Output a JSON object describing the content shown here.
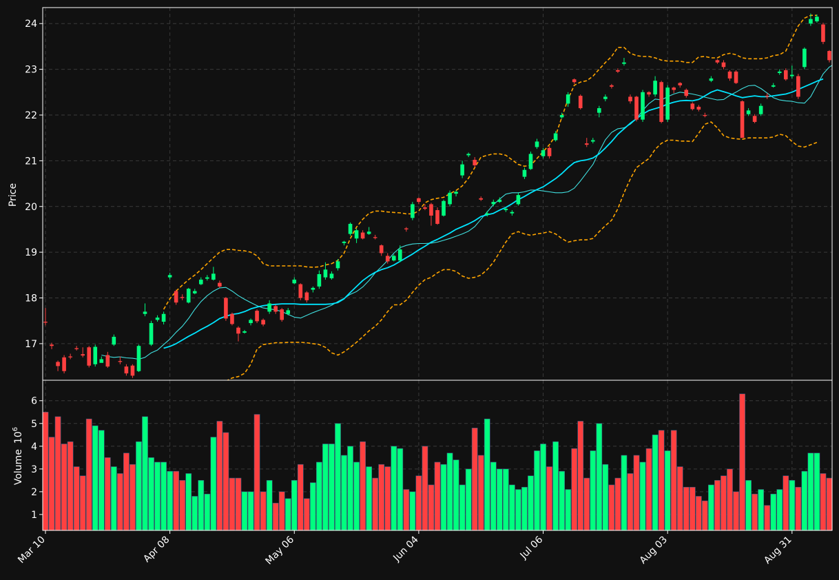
{
  "chart_data": {
    "type": "candlestick",
    "title": "",
    "price_panel": {
      "ylabel": "Price",
      "ylim": [
        16.2,
        24.35
      ],
      "yticks": [
        17,
        18,
        19,
        20,
        21,
        22,
        23,
        24
      ],
      "grid": true
    },
    "volume_panel": {
      "ylabel": "Volume",
      "ylabel_exponent": "10",
      "ylabel_exponent_power": "6",
      "ylim": [
        0.3,
        6.9
      ],
      "yticks": [
        1,
        2,
        3,
        4,
        5,
        6
      ],
      "grid": true
    },
    "x_ticks": [
      {
        "label": "Mar 10",
        "index": 0
      },
      {
        "label": "Apr 08",
        "index": 20
      },
      {
        "label": "May 06",
        "index": 40
      },
      {
        "label": "Jun 04",
        "index": 60
      },
      {
        "label": "Jul 06",
        "index": 80
      },
      {
        "label": "Aug 03",
        "index": 100
      },
      {
        "label": "Aug 31",
        "index": 120
      }
    ],
    "colors": {
      "up": "#00ff7f",
      "down": "#ff4040",
      "ma_fast": "#40e0e0",
      "ma_slow": "#00e5ff",
      "bands": "#ffa500",
      "background": "#111111",
      "grid": "#3a3a3a",
      "frame": "#ffffff"
    },
    "series_close": [
      17.46,
      16.95,
      16.51,
      16.4,
      16.7,
      16.88,
      16.74,
      16.52,
      16.93,
      16.66,
      16.5,
      17.15,
      16.6,
      16.35,
      16.3,
      16.95,
      17.7,
      17.45,
      17.57,
      17.65,
      18.5,
      17.9,
      18.0,
      18.2,
      18.15,
      18.4,
      18.45,
      18.53,
      18.25,
      17.55,
      17.43,
      17.22,
      17.27,
      17.52,
      17.49,
      17.42,
      17.88,
      17.7,
      17.52,
      17.73,
      18.4,
      18.0,
      17.95,
      18.22,
      18.52,
      18.62,
      18.53,
      18.8,
      19.23,
      19.62,
      19.48,
      19.3,
      19.45,
      19.31,
      18.98,
      18.8,
      18.92,
      19.06,
      19.5,
      20.05,
      20.1,
      19.95,
      19.8,
      19.62,
      20.12,
      20.3,
      20.32,
      20.92,
      21.15,
      20.9,
      20.15,
      19.85,
      20.1,
      20.15,
      19.95,
      19.88,
      20.25,
      20.8,
      21.15,
      21.42,
      21.23,
      21.1,
      21.6,
      22.0,
      22.45,
      22.72,
      22.15,
      21.35,
      21.45,
      22.15,
      22.4,
      22.62,
      22.95,
      23.15,
      22.3,
      21.9,
      22.5,
      22.45,
      22.75,
      21.85,
      22.6,
      22.55,
      22.65,
      22.42,
      22.13,
      22.12,
      21.98,
      22.8,
      23.15,
      23.05,
      22.8,
      22.7,
      21.5,
      22.1,
      21.85,
      22.2,
      22.4,
      22.65,
      22.95,
      22.78,
      22.88,
      22.4,
      23.45,
      24.1,
      24.15,
      23.6,
      23.2
    ],
    "series_open": [
      17.48,
      16.98,
      16.6,
      16.7,
      16.72,
      16.9,
      16.77,
      16.92,
      16.55,
      16.58,
      16.75,
      16.98,
      16.62,
      16.5,
      16.52,
      16.4,
      17.65,
      16.98,
      17.52,
      17.48,
      18.45,
      18.15,
      18.02,
      17.9,
      18.1,
      18.3,
      18.42,
      18.4,
      18.33,
      18.0,
      17.65,
      17.35,
      17.24,
      17.45,
      17.72,
      17.52,
      17.7,
      17.82,
      17.75,
      17.65,
      18.32,
      18.3,
      18.12,
      18.18,
      18.25,
      18.45,
      18.43,
      18.65,
      19.2,
      19.4,
      19.3,
      19.43,
      19.4,
      19.33,
      19.15,
      18.92,
      18.82,
      18.82,
      19.52,
      19.75,
      20.18,
      19.98,
      20.05,
      19.92,
      19.8,
      20.05,
      20.28,
      20.68,
      21.12,
      21.02,
      20.18,
      19.82,
      20.05,
      20.1,
      19.92,
      19.85,
      20.05,
      20.65,
      20.82,
      21.3,
      21.1,
      21.28,
      21.45,
      21.95,
      22.25,
      22.78,
      22.42,
      21.38,
      21.42,
      22.05,
      22.35,
      22.65,
      22.98,
      23.12,
      22.4,
      22.4,
      21.9,
      22.5,
      22.45,
      22.72,
      21.9,
      22.6,
      22.7,
      22.55,
      22.25,
      22.18,
      22.0,
      22.75,
      23.2,
      23.15,
      22.95,
      22.95,
      22.3,
      22.02,
      21.98,
      22.02,
      22.42,
      22.62,
      22.92,
      22.98,
      22.85,
      22.85,
      23.05,
      24.0,
      24.05,
      23.98,
      23.4
    ],
    "series_high": [
      17.78,
      17.02,
      16.63,
      16.75,
      16.78,
      16.95,
      16.92,
      16.95,
      16.98,
      16.72,
      16.82,
      17.2,
      16.72,
      16.55,
      16.55,
      16.98,
      17.88,
      17.5,
      17.62,
      17.7,
      18.55,
      18.18,
      18.08,
      18.22,
      18.2,
      18.45,
      18.5,
      18.68,
      18.38,
      18.02,
      17.68,
      17.38,
      17.3,
      17.55,
      17.75,
      17.55,
      17.95,
      17.85,
      17.78,
      17.78,
      18.45,
      18.32,
      18.15,
      18.25,
      18.6,
      18.78,
      18.58,
      18.85,
      19.25,
      19.65,
      19.52,
      19.48,
      19.55,
      19.38,
      19.17,
      18.98,
      18.95,
      19.15,
      19.55,
      20.1,
      20.2,
      20.05,
      20.08,
      19.98,
      20.15,
      20.35,
      20.35,
      21.0,
      21.18,
      21.08,
      20.22,
      19.9,
      20.15,
      20.2,
      19.98,
      19.92,
      20.3,
      20.85,
      21.2,
      21.48,
      21.28,
      21.32,
      21.65,
      22.05,
      22.5,
      22.8,
      22.45,
      21.5,
      21.5,
      22.2,
      22.45,
      22.68,
      23.02,
      23.25,
      22.45,
      22.42,
      22.55,
      22.52,
      22.85,
      22.75,
      22.65,
      22.62,
      22.72,
      22.58,
      22.28,
      22.22,
      22.05,
      22.85,
      23.22,
      23.2,
      22.98,
      22.98,
      22.32,
      22.15,
      22.02,
      22.25,
      22.48,
      22.7,
      23.0,
      23.02,
      23.08,
      22.9,
      23.48,
      24.22,
      24.2,
      24.02,
      23.42
    ],
    "series_low": [
      17.4,
      16.88,
      16.4,
      16.35,
      16.66,
      16.85,
      16.7,
      16.48,
      16.5,
      16.62,
      16.47,
      16.95,
      16.55,
      16.3,
      16.25,
      16.38,
      17.6,
      16.95,
      17.48,
      17.42,
      18.4,
      17.85,
      17.95,
      17.88,
      18.08,
      18.28,
      18.38,
      18.38,
      18.22,
      17.5,
      17.4,
      17.05,
      17.22,
      17.4,
      17.45,
      17.38,
      17.65,
      17.65,
      17.48,
      17.62,
      18.3,
      17.95,
      17.9,
      18.12,
      18.2,
      18.4,
      18.4,
      18.6,
      19.15,
      19.36,
      19.2,
      19.28,
      19.38,
      19.28,
      18.92,
      18.75,
      18.8,
      18.78,
      19.45,
      19.7,
      20.05,
      19.92,
      19.58,
      19.6,
      19.78,
      20.0,
      20.22,
      20.62,
      21.08,
      20.85,
      20.12,
      19.78,
      20.0,
      20.08,
      19.88,
      19.8,
      20.02,
      20.6,
      20.8,
      21.26,
      21.05,
      21.05,
      21.42,
      21.92,
      22.18,
      22.68,
      22.12,
      21.3,
      21.38,
      21.95,
      22.3,
      22.58,
      22.92,
      23.08,
      22.25,
      21.86,
      21.85,
      22.4,
      22.4,
      21.82,
      21.85,
      22.48,
      22.6,
      22.38,
      22.1,
      22.08,
      21.95,
      22.72,
      23.12,
      23.0,
      22.75,
      22.68,
      21.52,
      21.98,
      21.82,
      21.98,
      22.35,
      22.6,
      22.88,
      22.75,
      22.8,
      22.35,
      23.0,
      23.95,
      24.02,
      23.55,
      23.15
    ],
    "series_volume": [
      5.5,
      4.4,
      5.3,
      4.1,
      4.2,
      3.1,
      2.7,
      5.2,
      4.9,
      4.7,
      3.5,
      3.1,
      2.8,
      3.7,
      3.2,
      4.2,
      5.3,
      3.5,
      3.3,
      3.3,
      2.9,
      2.9,
      2.5,
      2.8,
      1.8,
      2.5,
      1.9,
      4.4,
      5.1,
      4.6,
      2.6,
      2.6,
      2.0,
      2.0,
      5.4,
      2.0,
      2.5,
      1.5,
      2.0,
      1.7,
      2.5,
      3.2,
      1.7,
      2.4,
      3.3,
      4.1,
      4.1,
      5.0,
      3.6,
      4.0,
      3.3,
      4.2,
      3.1,
      2.6,
      3.2,
      3.1,
      4.0,
      3.9,
      2.1,
      2.0,
      2.7,
      4.0,
      2.3,
      3.3,
      3.2,
      3.7,
      3.4,
      2.3,
      3.0,
      4.8,
      3.6,
      5.2,
      3.3,
      3.0,
      3.0,
      2.3,
      2.1,
      2.2,
      2.7,
      3.8,
      4.1,
      3.1,
      4.2,
      2.9,
      2.1,
      3.9,
      5.1,
      2.6,
      3.8,
      5.0,
      3.2,
      2.3,
      2.6,
      3.6,
      2.8,
      3.6,
      3.3,
      3.9,
      4.5,
      4.7,
      3.8,
      4.7,
      3.1,
      2.2,
      2.2,
      1.8,
      1.6,
      2.3,
      2.5,
      2.7,
      3.0,
      2.0,
      6.3,
      2.5,
      1.9,
      2.1,
      1.4,
      1.9,
      2.1,
      2.7,
      2.5,
      2.2,
      2.9,
      3.7,
      3.7,
      2.8,
      2.6
    ],
    "ma_fast": {
      "start": 9,
      "values": [
        16.75,
        16.72,
        16.7,
        16.71,
        16.69,
        16.68,
        16.66,
        16.7,
        16.8,
        16.86,
        16.98,
        17.1,
        17.25,
        17.38,
        17.55,
        17.75,
        17.92,
        18.05,
        18.15,
        18.22,
        18.23,
        18.15,
        18.05,
        17.97,
        17.9,
        17.83,
        17.78,
        17.76,
        17.74,
        17.7,
        17.64,
        17.58,
        17.56,
        17.62,
        17.68,
        17.73,
        17.78,
        17.84,
        17.92,
        17.99,
        18.08,
        18.14,
        18.24,
        18.38,
        18.55,
        18.68,
        18.82,
        18.98,
        19.1,
        19.15,
        19.18,
        19.19,
        19.19,
        19.2,
        19.22,
        19.26,
        19.3,
        19.35,
        19.4,
        19.46,
        19.56,
        19.72,
        19.88,
        20.04,
        20.16,
        20.27,
        20.3,
        20.3,
        20.32,
        20.36,
        20.36,
        20.34,
        20.32,
        20.3,
        20.3,
        20.32,
        20.4,
        20.56,
        20.74,
        20.92,
        21.2,
        21.46,
        21.62,
        21.7,
        21.72,
        21.8,
        21.92,
        22.1,
        22.25,
        22.35,
        22.33,
        22.4,
        22.46,
        22.5,
        22.48,
        22.46,
        22.43,
        22.39,
        22.36,
        22.33,
        22.34,
        22.43,
        22.5,
        22.58,
        22.64,
        22.65,
        22.58,
        22.48,
        22.38,
        22.33,
        22.31,
        22.3,
        22.27,
        22.26,
        22.4,
        22.65,
        22.9,
        23.05,
        23.13
      ]
    },
    "ma_slow": {
      "start": 19,
      "values": [
        16.9,
        16.94,
        17.0,
        17.08,
        17.16,
        17.23,
        17.31,
        17.38,
        17.46,
        17.55,
        17.6,
        17.64,
        17.66,
        17.7,
        17.76,
        17.8,
        17.83,
        17.85,
        17.86,
        17.87,
        17.87,
        17.87,
        17.86,
        17.86,
        17.86,
        17.86,
        17.86,
        17.87,
        17.9,
        17.98,
        18.12,
        18.25,
        18.38,
        18.48,
        18.56,
        18.62,
        18.66,
        18.72,
        18.8,
        18.88,
        18.96,
        19.05,
        19.13,
        19.22,
        19.28,
        19.35,
        19.42,
        19.5,
        19.56,
        19.62,
        19.69,
        19.78,
        19.82,
        19.85,
        19.92,
        19.98,
        20.06,
        20.15,
        20.22,
        20.3,
        20.37,
        20.43,
        20.52,
        20.61,
        20.72,
        20.85,
        20.96,
        21.0,
        21.02,
        21.06,
        21.15,
        21.28,
        21.42,
        21.58,
        21.7,
        21.82,
        21.92,
        22.02,
        22.1,
        22.14,
        22.18,
        22.24,
        22.28,
        22.31,
        22.32,
        22.31,
        22.34,
        22.42,
        22.5,
        22.55,
        22.51,
        22.47,
        22.42,
        22.38,
        22.4,
        22.42,
        22.4,
        22.4,
        22.42,
        22.44,
        22.46,
        22.5,
        22.56,
        22.62,
        22.68,
        22.74,
        22.79
      ]
    },
    "band_upper": {
      "start": 19,
      "values": [
        17.75,
        17.98,
        18.15,
        18.28,
        18.4,
        18.5,
        18.62,
        18.75,
        18.88,
        19.0,
        19.06,
        19.06,
        19.04,
        19.03,
        19.0,
        18.92,
        18.75,
        18.7,
        18.7,
        18.7,
        18.7,
        18.7,
        18.7,
        18.68,
        18.67,
        18.68,
        18.72,
        18.75,
        18.82,
        18.98,
        19.3,
        19.55,
        19.72,
        19.85,
        19.9,
        19.9,
        19.88,
        19.87,
        19.86,
        19.84,
        19.84,
        19.9,
        20.08,
        20.15,
        20.18,
        20.2,
        20.28,
        20.35,
        20.45,
        20.62,
        20.85,
        21.08,
        21.12,
        21.15,
        21.15,
        21.12,
        21.02,
        20.92,
        20.88,
        20.9,
        21.05,
        21.2,
        21.35,
        21.55,
        21.95,
        22.35,
        22.65,
        22.72,
        22.75,
        22.85,
        23.0,
        23.15,
        23.28,
        23.48,
        23.48,
        23.35,
        23.3,
        23.28,
        23.28,
        23.25,
        23.2,
        23.18,
        23.18,
        23.18,
        23.15,
        23.15,
        23.27,
        23.28,
        23.25,
        23.25,
        23.32,
        23.35,
        23.32,
        23.25,
        23.23,
        23.23,
        23.23,
        23.25,
        23.3,
        23.32,
        23.4,
        23.68,
        23.95,
        24.12,
        24.18,
        24.18
      ]
    },
    "band_lower": {
      "start": 29,
      "values": [
        16.18,
        16.25,
        16.28,
        16.35,
        16.55,
        16.88,
        16.98,
        17.0,
        17.02,
        17.02,
        17.03,
        17.03,
        17.03,
        17.02,
        17.0,
        16.98,
        16.92,
        16.8,
        16.75,
        16.82,
        16.92,
        17.03,
        17.15,
        17.28,
        17.38,
        17.52,
        17.7,
        17.85,
        17.85,
        17.95,
        18.12,
        18.28,
        18.4,
        18.45,
        18.55,
        18.62,
        18.62,
        18.58,
        18.48,
        18.43,
        18.45,
        18.5,
        18.62,
        18.78,
        19.0,
        19.22,
        19.4,
        19.45,
        19.4,
        19.37,
        19.4,
        19.42,
        19.45,
        19.4,
        19.3,
        19.22,
        19.25,
        19.27,
        19.27,
        19.3,
        19.45,
        19.58,
        19.7,
        19.95,
        20.3,
        20.6,
        20.85,
        20.95,
        21.05,
        21.25,
        21.38,
        21.45,
        21.45,
        21.43,
        21.43,
        21.42,
        21.6,
        21.8,
        21.85,
        21.72,
        21.55,
        21.5,
        21.48,
        21.47,
        21.5,
        21.5,
        21.5,
        21.5,
        21.52,
        21.58,
        21.55,
        21.42,
        21.32,
        21.3,
        21.35,
        21.4
      ]
    }
  }
}
